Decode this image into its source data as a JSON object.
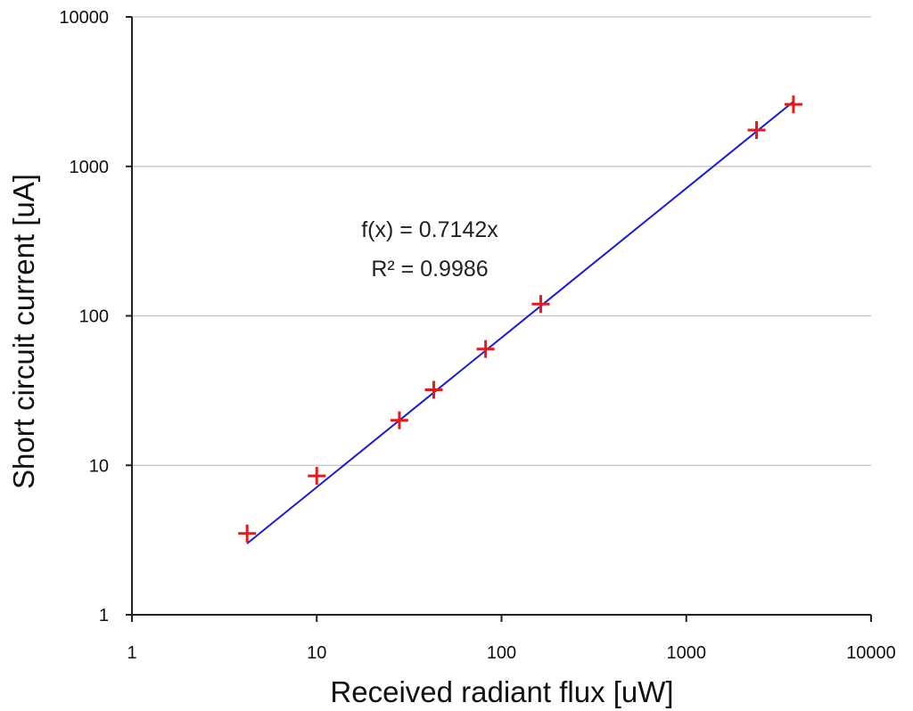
{
  "chart_data": {
    "type": "scatter",
    "x_scale": "log",
    "y_scale": "log",
    "xlim": [
      1,
      10000
    ],
    "ylim": [
      1,
      10000
    ],
    "xlabel": "Received radiant flux [uW]",
    "ylabel": "Short circuit current [uA]",
    "x_tick_labels": [
      "1",
      "10",
      "100",
      "1000",
      "10000"
    ],
    "y_tick_labels": [
      "1",
      "10",
      "100",
      "1000",
      "10000"
    ],
    "grid": "horizontal major gridlines",
    "legend": "none",
    "series": [
      {
        "marker": "plus",
        "color": "#e8191c",
        "points": [
          {
            "x": 4.2,
            "y": 3.5
          },
          {
            "x": 10,
            "y": 8.5
          },
          {
            "x": 28,
            "y": 20
          },
          {
            "x": 43,
            "y": 32
          },
          {
            "x": 82,
            "y": 60
          },
          {
            "x": 163,
            "y": 120
          },
          {
            "x": 2400,
            "y": 1750
          },
          {
            "x": 3800,
            "y": 2600
          }
        ]
      }
    ],
    "trendline": {
      "color": "#1a1adf",
      "equation": "f(x) = 0.7142x",
      "r_squared": "R² = 0.9986",
      "slope": 0.7142,
      "x_range": [
        4.2,
        3800
      ]
    }
  }
}
